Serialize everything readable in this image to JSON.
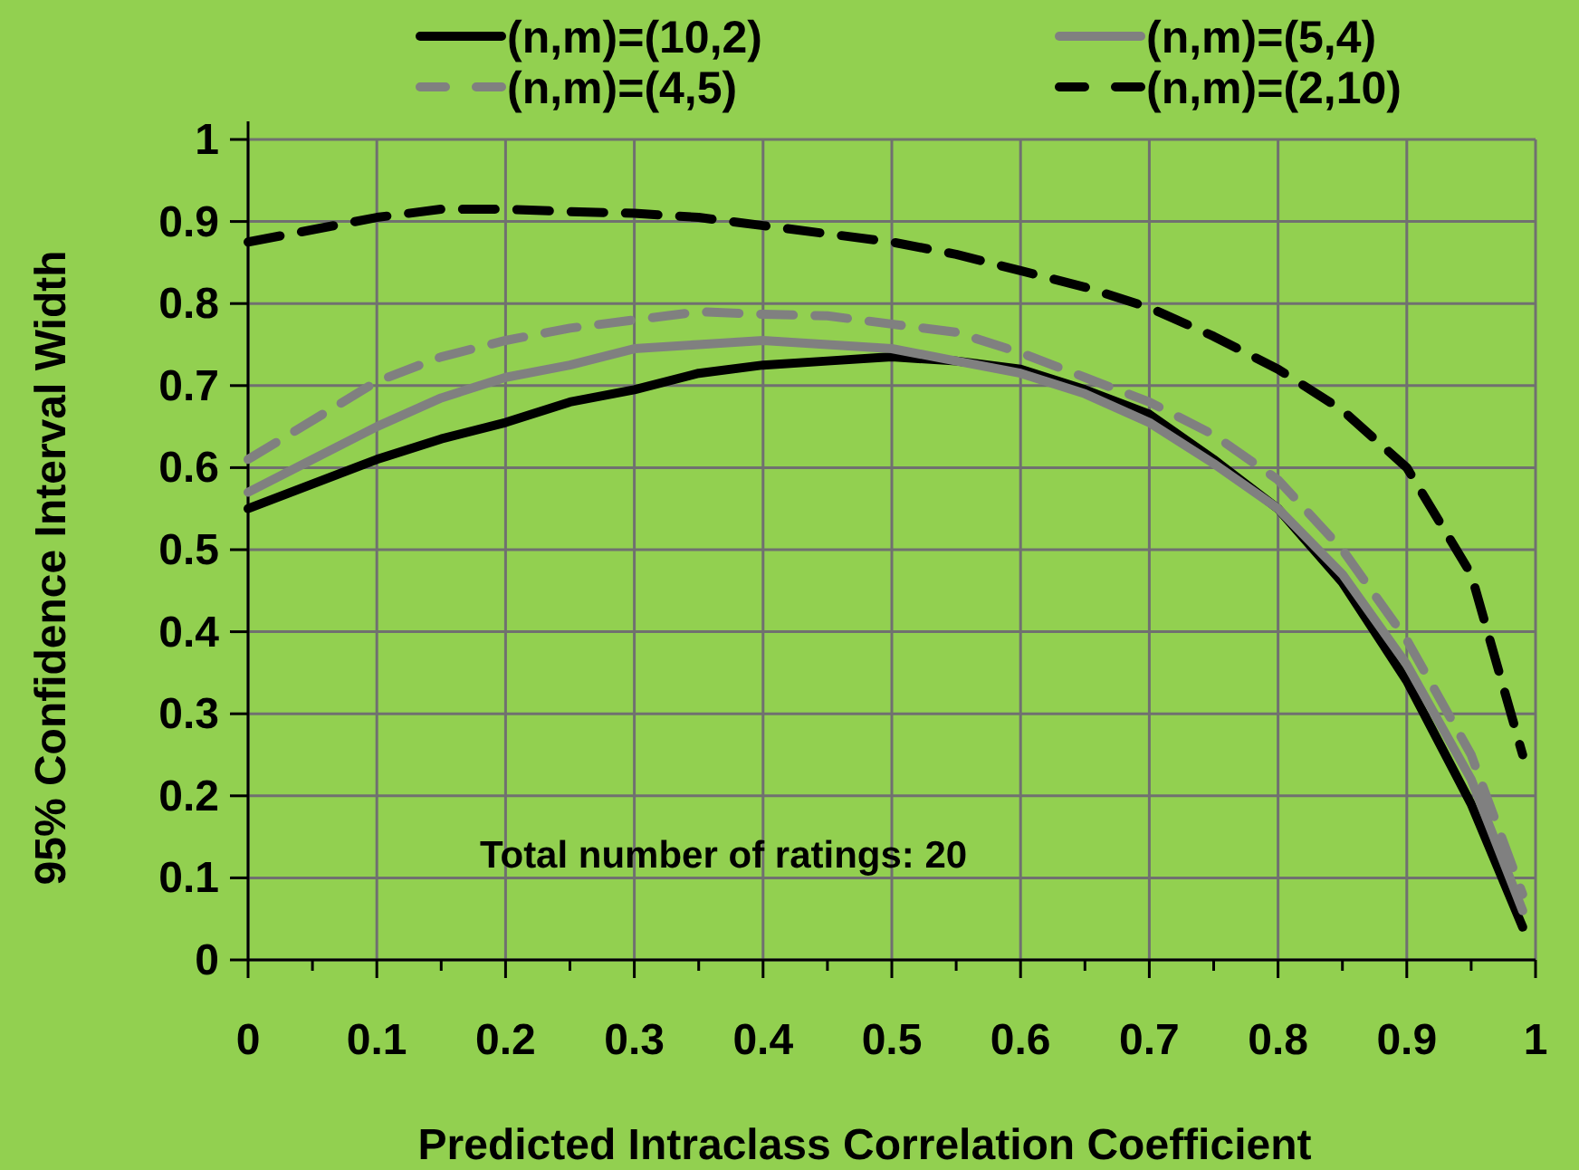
{
  "chart_data": {
    "type": "line",
    "xlabel": "Predicted Intraclass Correlation Coefficient",
    "ylabel": "95% Confidence Interval Width",
    "x": [
      0,
      0.1,
      0.15,
      0.2,
      0.25,
      0.3,
      0.35,
      0.4,
      0.45,
      0.5,
      0.55,
      0.6,
      0.65,
      0.7,
      0.75,
      0.8,
      0.85,
      0.9,
      0.95,
      0.99
    ],
    "series": [
      {
        "name": "(n,m)=(10,2)",
        "color": "#000000",
        "line_style": "solid",
        "values": [
          0.55,
          0.61,
          0.635,
          0.655,
          0.68,
          0.695,
          0.715,
          0.725,
          0.73,
          0.735,
          0.73,
          0.72,
          0.695,
          0.665,
          0.61,
          0.55,
          0.46,
          0.34,
          0.19,
          0.04
        ]
      },
      {
        "name": "(n,m)=(5,4)",
        "color": "#808080",
        "line_style": "solid",
        "values": [
          0.57,
          0.65,
          0.685,
          0.71,
          0.725,
          0.745,
          0.75,
          0.755,
          0.75,
          0.745,
          0.73,
          0.715,
          0.69,
          0.655,
          0.605,
          0.55,
          0.47,
          0.36,
          0.22,
          0.06
        ]
      },
      {
        "name": "(n,m)=(4,5)",
        "color": "#808080",
        "line_style": "dashed",
        "values": [
          0.61,
          0.705,
          0.735,
          0.755,
          0.77,
          0.78,
          0.79,
          0.787,
          0.785,
          0.775,
          0.765,
          0.74,
          0.71,
          0.68,
          0.64,
          0.585,
          0.5,
          0.39,
          0.25,
          0.08
        ]
      },
      {
        "name": "(n,m)=(2,10)",
        "color": "#000000",
        "line_style": "dashed",
        "values": [
          0.875,
          0.905,
          0.915,
          0.915,
          0.912,
          0.91,
          0.905,
          0.895,
          0.885,
          0.875,
          0.86,
          0.84,
          0.82,
          0.795,
          0.76,
          0.72,
          0.67,
          0.6,
          0.47,
          0.25
        ]
      }
    ],
    "xlim": [
      0,
      1
    ],
    "xticks": [
      0,
      {
        "value": 0.05,
        "label": null
      },
      0.1,
      {
        "value": 0.15,
        "label": null
      },
      0.2,
      {
        "value": 0.25,
        "label": null
      },
      0.3,
      {
        "value": 0.35,
        "label": null
      },
      0.4,
      {
        "value": 0.45,
        "label": null
      },
      0.5,
      {
        "value": 0.55,
        "label": null
      },
      0.6,
      {
        "value": 0.65,
        "label": null
      },
      0.7,
      {
        "value": 0.75,
        "label": null
      },
      0.8,
      {
        "value": 0.85,
        "label": null
      },
      0.9,
      {
        "value": 0.95,
        "label": null
      },
      1
    ],
    "ylim": [
      0,
      1
    ],
    "yticks": [
      0,
      0.1,
      0.2,
      0.3,
      0.4,
      0.5,
      0.6,
      0.7,
      0.8,
      0.9,
      1
    ],
    "grid": true,
    "legend": "top",
    "marker": "none",
    "annotations": [
      "Total number of ratings: 20"
    ]
  }
}
